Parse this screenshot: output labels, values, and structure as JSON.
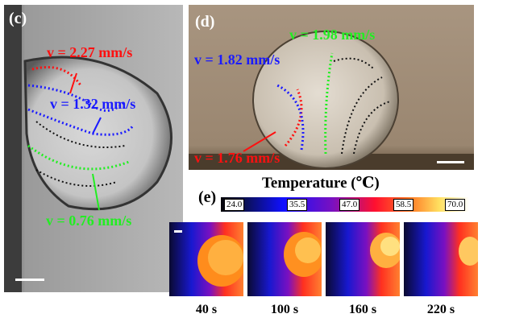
{
  "panel_c": {
    "label": "(c)",
    "velocities": [
      {
        "text": "v = 2.27 mm/s",
        "color": "#ff1010"
      },
      {
        "text": "v = 1.32 mm/s",
        "color": "#1a1aff"
      },
      {
        "text": "v = 0.76 mm/s",
        "color": "#22ee22"
      }
    ]
  },
  "panel_d": {
    "label": "(d)",
    "velocities": [
      {
        "text": "v = 1.98 mm/s",
        "color": "#22ee22"
      },
      {
        "text": "v = 1.82 mm/s",
        "color": "#1a1aff"
      },
      {
        "text": "v = 1.76 mm/s",
        "color": "#ff1010"
      }
    ]
  },
  "panel_e": {
    "label": "(e)",
    "colorbar_title": "Temperature (℃)",
    "ticks": [
      "24.0",
      "35.5",
      "47.0",
      "58.5",
      "70.0"
    ],
    "times": [
      "40 s",
      "100 s",
      "160 s",
      "220 s"
    ]
  }
}
